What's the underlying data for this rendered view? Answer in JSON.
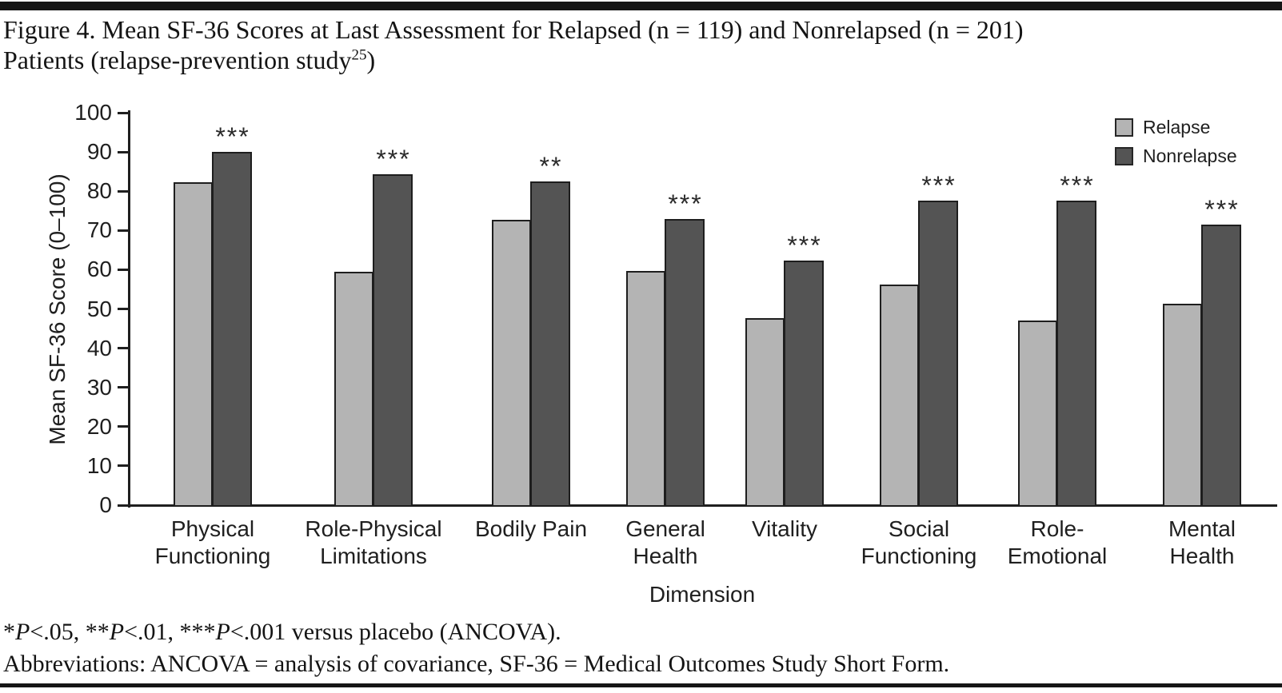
{
  "title": {
    "line1": "Figure 4. Mean SF-36 Scores at Last Assessment for Relapsed (n = 119) and Nonrelapsed (n = 201)",
    "line2_pre": "Patients (relapse-prevention study",
    "line2_sup": "25",
    "line2_post": ")"
  },
  "chart_data": {
    "type": "bar",
    "title": "Mean SF-36 Scores at Last Assessment for Relapsed and Nonrelapsed Patients",
    "xlabel": "Dimension",
    "ylabel": "Mean SF-36 Score (0–100)",
    "ylim": [
      0,
      100
    ],
    "yticks": [
      0,
      10,
      20,
      30,
      40,
      50,
      60,
      70,
      80,
      90,
      100
    ],
    "grid": false,
    "legend_position": "top-right",
    "sample_sizes": {
      "relapsed_n": 119,
      "nonrelapsed_n": 201
    },
    "categories": [
      "Physical Functioning",
      "Role-Physical Limitations",
      "Bodily Pain",
      "General Health",
      "Vitality",
      "Social Functioning",
      "Role-Emotional",
      "Mental Health"
    ],
    "category_label_lines": [
      [
        "Physical",
        "Functioning"
      ],
      [
        "Role-Physical",
        "Limitations"
      ],
      [
        "Bodily Pain"
      ],
      [
        "General",
        "Health"
      ],
      [
        "Vitality"
      ],
      [
        "Social",
        "Functioning"
      ],
      [
        "Role-",
        "Emotional"
      ],
      [
        "Mental",
        "Health"
      ]
    ],
    "series": [
      {
        "name": "Relapse",
        "color": "#b4b4b4",
        "values": [
          82.3,
          59.4,
          72.7,
          59.6,
          47.6,
          56.2,
          47.0,
          51.4
        ]
      },
      {
        "name": "Nonrelapse",
        "color": "#545454",
        "values": [
          90.1,
          84.3,
          82.4,
          72.9,
          62.4,
          77.6,
          77.6,
          71.4
        ]
      }
    ],
    "significance": [
      "***",
      "***",
      "**",
      "***",
      "***",
      "***",
      "***",
      "***"
    ]
  },
  "footnotes": {
    "significance_text": "*P<.05, **P<.01, ***P<.001 versus placebo (ANCOVA).",
    "significance_segments": [
      {
        "t": "*",
        "i": false
      },
      {
        "t": "P",
        "i": true
      },
      {
        "t": "<.05, **",
        "i": false
      },
      {
        "t": "P",
        "i": true
      },
      {
        "t": "<.01, ***",
        "i": false
      },
      {
        "t": "P",
        "i": true
      },
      {
        "t": "<.001 versus placebo (ANCOVA).",
        "i": false
      }
    ],
    "abbreviations": "Abbreviations: ANCOVA = analysis of covariance, SF-36 = Medical Outcomes Study Short Form."
  },
  "colors": {
    "relapse_fill": "#b4b4b4",
    "nonrelapse_fill": "#545454",
    "bar_outline": "#1e1e1e",
    "axis": "#1f1f1f",
    "rule": "#161616",
    "text": "#141414"
  }
}
